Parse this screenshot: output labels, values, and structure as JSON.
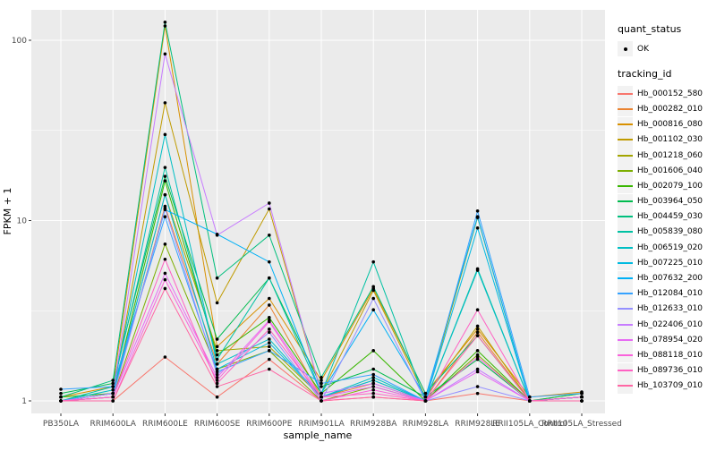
{
  "chart_data": {
    "type": "line",
    "title": "",
    "xlabel": "sample_name",
    "ylabel": "FPKM + 1",
    "y_scale": "log10",
    "ylim": [
      0.85,
      150
    ],
    "y_major_ticks": [
      1,
      10,
      100
    ],
    "y_minor_gridlines": [
      3.162,
      31.623
    ],
    "grid": "white major+minor on grey panel",
    "legend_position": "right",
    "point_marker": "small black dot on every value",
    "categories": [
      "PB350LA",
      "RRIM600LA",
      "RRIM600LE",
      "RRIM600SE",
      "RRIM600PE",
      "RRIM901LA",
      "RRIM928BA",
      "RRIM928LA",
      "RRIM928LE",
      "RRII105LA_Control",
      "RRII105LA_Stressed"
    ],
    "series": [
      {
        "name": "Hb_000152_580",
        "color": "#F8766D",
        "values": [
          1.0,
          1.0,
          1.75,
          1.05,
          1.7,
          1.0,
          1.05,
          1.0,
          1.1,
          1.0,
          1.0
        ]
      },
      {
        "name": "Hb_000282_010",
        "color": "#EA8331",
        "values": [
          1.0,
          1.05,
          12.0,
          1.6,
          3.4,
          1.05,
          1.25,
          1.0,
          2.4,
          1.0,
          1.05
        ]
      },
      {
        "name": "Hb_000816_080",
        "color": "#D89000",
        "values": [
          1.05,
          1.2,
          120,
          2.0,
          3.7,
          1.3,
          4.2,
          1.1,
          2.5,
          1.05,
          1.12
        ]
      },
      {
        "name": "Hb_001102_030",
        "color": "#C09B00",
        "values": [
          1.0,
          1.1,
          45,
          3.5,
          11.6,
          1.1,
          4.1,
          1.05,
          2.6,
          1.0,
          1.1
        ]
      },
      {
        "name": "Hb_001218_060",
        "color": "#A3A500",
        "values": [
          1.0,
          1.1,
          13.9,
          1.9,
          2.0,
          1.05,
          1.3,
          1.0,
          10.4,
          1.0,
          1.05
        ]
      },
      {
        "name": "Hb_001606_040",
        "color": "#7CAE00",
        "values": [
          1.0,
          1.05,
          7.4,
          1.5,
          1.9,
          1.0,
          1.2,
          1.0,
          1.8,
          1.0,
          1.0
        ]
      },
      {
        "name": "Hb_002079_100",
        "color": "#39B600",
        "values": [
          1.05,
          1.1,
          16.6,
          1.8,
          2.9,
          1.1,
          1.9,
          1.0,
          1.9,
          1.0,
          1.05
        ]
      },
      {
        "name": "Hb_003964_050",
        "color": "#00BB4E",
        "values": [
          1.1,
          1.25,
          17.6,
          2.2,
          4.8,
          1.2,
          1.5,
          1.05,
          1.7,
          1.0,
          1.1
        ]
      },
      {
        "name": "Hb_004459_030",
        "color": "#00BF7D",
        "values": [
          1.05,
          1.3,
          126,
          4.8,
          8.3,
          1.35,
          4.3,
          1.1,
          2.3,
          1.0,
          1.05
        ]
      },
      {
        "name": "Hb_005839_080",
        "color": "#00C1A3",
        "values": [
          1.0,
          1.2,
          19.7,
          1.7,
          4.8,
          1.1,
          5.9,
          1.0,
          5.4,
          1.0,
          1.05
        ]
      },
      {
        "name": "Hb_006519_020",
        "color": "#00BFC4",
        "values": [
          1.0,
          1.15,
          30,
          1.6,
          2.2,
          1.05,
          1.35,
          1.0,
          5.3,
          1.0,
          1.0
        ]
      },
      {
        "name": "Hb_007225_010",
        "color": "#00BAE0",
        "values": [
          1.0,
          1.1,
          13.9,
          1.5,
          2.1,
          1.05,
          1.3,
          1.0,
          9.1,
          1.0,
          1.05
        ]
      },
      {
        "name": "Hb_007632_200",
        "color": "#00B0F6",
        "values": [
          1.0,
          1.1,
          11.5,
          8.4,
          5.9,
          1.1,
          3.2,
          1.05,
          10.5,
          1.0,
          1.05
        ]
      },
      {
        "name": "Hb_012084_010",
        "color": "#35A2FF",
        "values": [
          1.16,
          1.2,
          10.5,
          1.45,
          1.9,
          1.25,
          1.4,
          1.0,
          11.3,
          1.05,
          1.1
        ]
      },
      {
        "name": "Hb_012633_010",
        "color": "#9590FF",
        "values": [
          1.0,
          1.05,
          11.7,
          1.4,
          2.4,
          1.0,
          3.7,
          1.0,
          1.2,
          1.0,
          1.0
        ]
      },
      {
        "name": "Hb_022406_010",
        "color": "#C77CFF",
        "values": [
          1.0,
          1.1,
          84,
          8.3,
          12.5,
          1.1,
          1.25,
          1.0,
          1.5,
          1.0,
          1.05
        ]
      },
      {
        "name": "Hb_078954_020",
        "color": "#E76BF3",
        "values": [
          1.0,
          1.05,
          5.1,
          1.35,
          2.8,
          1.05,
          1.2,
          1.0,
          1.45,
          1.0,
          1.0
        ]
      },
      {
        "name": "Hb_088118_010",
        "color": "#FA62DB",
        "values": [
          1.0,
          1.0,
          4.7,
          1.3,
          2.75,
          1.0,
          1.15,
          1.0,
          1.75,
          1.0,
          1.0
        ]
      },
      {
        "name": "Hb_089736_010",
        "color": "#FF61C3",
        "values": [
          1.0,
          1.05,
          6.1,
          1.25,
          2.5,
          1.05,
          1.1,
          1.0,
          3.2,
          1.0,
          1.05
        ]
      },
      {
        "name": "Hb_103709_010",
        "color": "#FF67A4",
        "values": [
          1.0,
          1.0,
          4.2,
          1.2,
          1.5,
          1.0,
          1.05,
          1.0,
          2.3,
          1.0,
          1.0
        ]
      }
    ]
  },
  "legend": {
    "quant_status": {
      "title": "quant_status",
      "items": [
        {
          "label": "OK",
          "marker": "black-point"
        }
      ]
    },
    "tracking_id": {
      "title": "tracking_id"
    }
  },
  "colors": {
    "panel_bg": "#EBEBEB",
    "grid": "#FFFFFF",
    "point": "#000000",
    "tick_label": "#4D4D4D",
    "tick_mark": "#333333",
    "axis_title": "#000000",
    "legend_key_bg": "#F2F2F2"
  }
}
